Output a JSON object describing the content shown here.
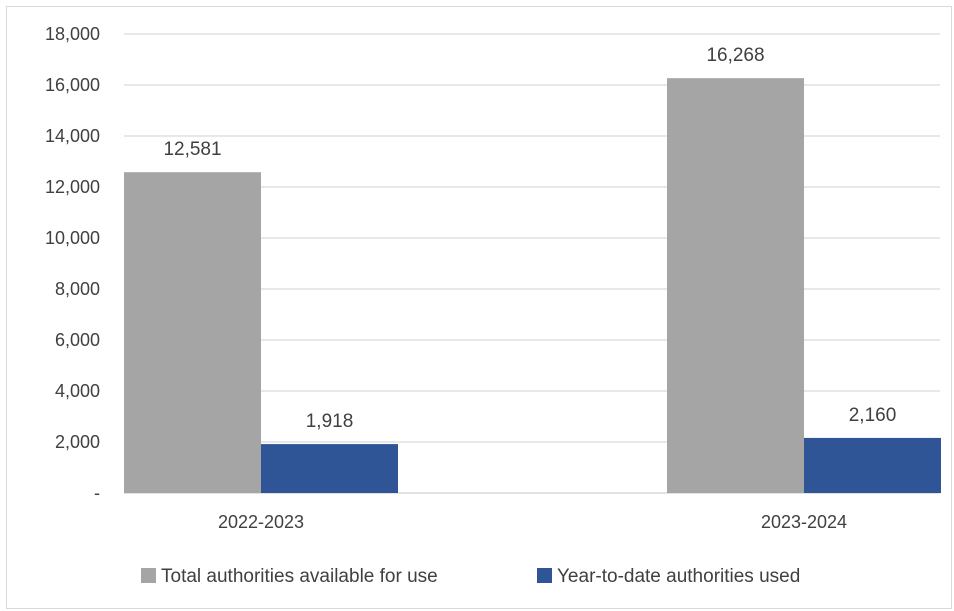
{
  "chart_data": {
    "type": "bar",
    "categories": [
      "2022-2023",
      "2023-2024"
    ],
    "series": [
      {
        "name": "Total authorities available for use",
        "values": [
          12581,
          16268
        ],
        "labels": [
          "12,581",
          "16,268"
        ],
        "color": "#a5a5a5"
      },
      {
        "name": "Year-to-date authorities used",
        "values": [
          1918,
          2160
        ],
        "labels": [
          "1,918",
          "2,160"
        ],
        "color": "#2f5597"
      }
    ],
    "ylim": [
      0,
      18000
    ],
    "yticks": [
      {
        "value": 0,
        "label": "-"
      },
      {
        "value": 2000,
        "label": "2,000"
      },
      {
        "value": 4000,
        "label": "4,000"
      },
      {
        "value": 6000,
        "label": "6,000"
      },
      {
        "value": 8000,
        "label": "8,000"
      },
      {
        "value": 10000,
        "label": "10,000"
      },
      {
        "value": 12000,
        "label": "12,000"
      },
      {
        "value": 14000,
        "label": "14,000"
      },
      {
        "value": 16000,
        "label": "16,000"
      },
      {
        "value": 18000,
        "label": "18,000"
      }
    ],
    "title": "",
    "xlabel": "",
    "ylabel": "",
    "grid": true,
    "legend_position": "bottom",
    "gridline_color": "#d9d9d9",
    "axis_color": "#d9d9d9"
  }
}
